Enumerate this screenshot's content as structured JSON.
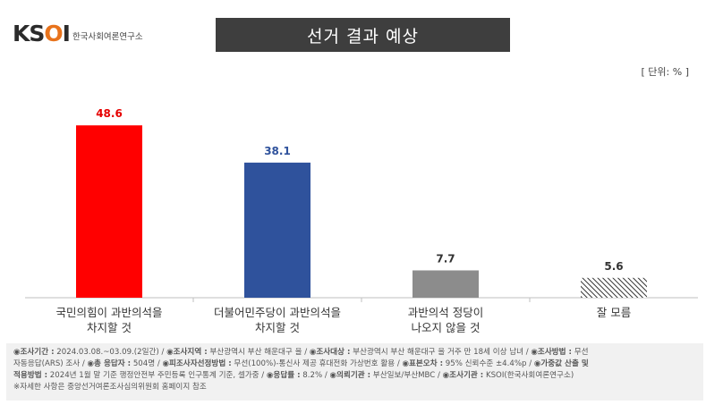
{
  "logo": {
    "mark_left": "KS",
    "mark_o": "O",
    "mark_right": "I",
    "org": "한국사회여론연구소"
  },
  "title": "선거 결과 예상",
  "unit": "[ 단위: % ]",
  "chart_data": {
    "type": "bar",
    "categories": [
      [
        "국민의힘이 과반의석을",
        "차지할 것"
      ],
      [
        "더불어민주당이 과반의석을",
        "차지할 것"
      ],
      [
        "과반의석 정당이",
        "나오지 않을 것"
      ],
      [
        "잘 모름"
      ]
    ],
    "values": [
      48.6,
      38.1,
      7.7,
      5.6
    ],
    "value_labels": [
      "48.6",
      "38.1",
      "7.7",
      "5.6"
    ],
    "colors": [
      "#ff0000",
      "#2f529c",
      "#8c8c8c",
      "hatch"
    ],
    "label_colors": [
      "#e60000",
      "#2f529c",
      "#333333",
      "#333333"
    ],
    "ylim": [
      0,
      60
    ],
    "grid": false
  },
  "footer": {
    "line1": [
      {
        "k": "◉조사기간 :",
        "v": " 2024.03.08.~03.09.(2일간)  / "
      },
      {
        "k": "◉조사지역 :",
        "v": " 부산광역시 부산 해운대구 을 / "
      },
      {
        "k": "◉조사대상 :",
        "v": " 부산광역시 부산 해운대구 을 거주 만 18세 이상 남녀 / "
      },
      {
        "k": "◉조사방법 :",
        "v": " 무선"
      }
    ],
    "line2": [
      {
        "k": "",
        "v": "자동응답(ARS) 조사 / "
      },
      {
        "k": "◉총 응답자 :",
        "v": " 504명 / "
      },
      {
        "k": "◉피조사자선정방법 :",
        "v": " 무선(100%)-통신사 제공 휴대전화 가상번호 활용 / "
      },
      {
        "k": "◉표본오차 :",
        "v": " 95% 신뢰수준 ±4.4%p / "
      },
      {
        "k": "◉가중값 산출 및",
        "v": ""
      }
    ],
    "line3": [
      {
        "k": "적용방법 :",
        "v": " 2024년 1월 말 기준 행정안전부 주민등록 인구통계 기준, 셀가중 / "
      },
      {
        "k": "◉응답률 :",
        "v": " 8.2% / "
      },
      {
        "k": "◉의뢰기관 :",
        "v": " 부산일보/부산MBC / "
      },
      {
        "k": "◉조사기관 :",
        "v": " KSOI(한국사회여론연구소)"
      }
    ],
    "line4": "※자세한 사항은 중앙선거여론조사심의위원회 홈페이지 참조"
  }
}
